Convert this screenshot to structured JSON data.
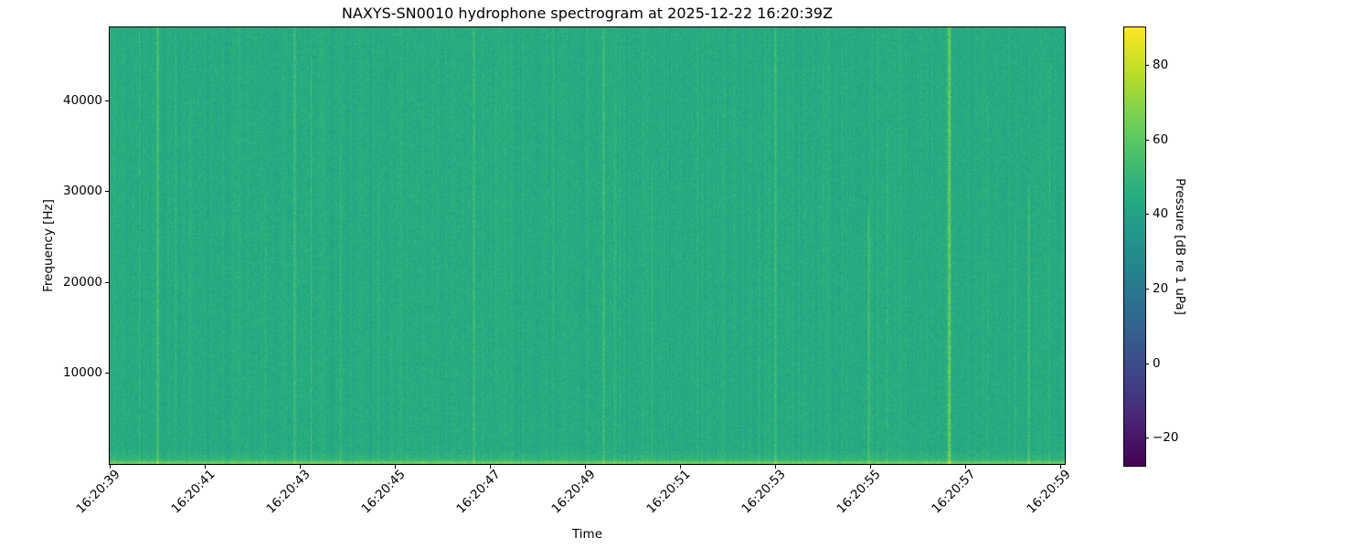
{
  "chart_data": {
    "type": "heatmap",
    "subtype": "spectrogram",
    "title": "NAXYS-SN0010 hydrophone spectrogram at 2025-12-22 16:20:39Z",
    "xlabel": "Time",
    "ylabel": "Frequency [Hz]",
    "colorbar_label": "Pressure [dB re 1 uPa]",
    "colormap": "viridis",
    "grid": false,
    "legend": "none (colorbar on right)",
    "x_range_seconds": [
      0,
      20.1
    ],
    "x_ticks": [
      {
        "label": "16:20:39",
        "t": 0
      },
      {
        "label": "16:20:41",
        "t": 2
      },
      {
        "label": "16:20:43",
        "t": 4
      },
      {
        "label": "16:20:45",
        "t": 6
      },
      {
        "label": "16:20:47",
        "t": 8
      },
      {
        "label": "16:20:49",
        "t": 10
      },
      {
        "label": "16:20:51",
        "t": 12
      },
      {
        "label": "16:20:53",
        "t": 14
      },
      {
        "label": "16:20:55",
        "t": 16
      },
      {
        "label": "16:20:57",
        "t": 18
      },
      {
        "label": "16:20:59",
        "t": 20
      }
    ],
    "ylim": [
      0,
      48000
    ],
    "y_ticks": [
      {
        "label": "10000",
        "f": 10000
      },
      {
        "label": "20000",
        "f": 20000
      },
      {
        "label": "30000",
        "f": 30000
      },
      {
        "label": "40000",
        "f": 40000
      }
    ],
    "clim": [
      -27.5,
      90
    ],
    "colorbar_ticks": [
      {
        "label": "80",
        "v": 80
      },
      {
        "label": "60",
        "v": 60
      },
      {
        "label": "40",
        "v": 40
      },
      {
        "label": "20",
        "v": 20
      },
      {
        "label": "0",
        "v": 0
      },
      {
        "label": "−20",
        "v": -20
      }
    ],
    "background_level_db": 44.5,
    "pixel_noise_sigma_db": 2.8,
    "column_noise_sigma_db": 1.2,
    "low_band": {
      "freq_hz": 800,
      "boost_db": 16
    },
    "transients": [
      {
        "t": 0.62,
        "db": 10,
        "band": [
          0,
          1
        ]
      },
      {
        "t": 1.0,
        "db": 15,
        "band": [
          0,
          1
        ]
      },
      {
        "t": 1.38,
        "db": 9,
        "band": [
          0.1,
          0.95
        ]
      },
      {
        "t": 1.67,
        "db": 6,
        "band": [
          0,
          0.8
        ]
      },
      {
        "t": 2.73,
        "db": 5,
        "band": [
          0.2,
          1
        ]
      },
      {
        "t": 3.27,
        "db": 6,
        "band": [
          0,
          0.6
        ]
      },
      {
        "t": 3.88,
        "db": 14,
        "band": [
          0,
          1
        ]
      },
      {
        "t": 4.23,
        "db": 9,
        "band": [
          0,
          0.9
        ]
      },
      {
        "t": 4.85,
        "db": 8,
        "band": [
          0,
          0.7
        ]
      },
      {
        "t": 5.63,
        "db": 8,
        "band": [
          0,
          0.6
        ]
      },
      {
        "t": 5.9,
        "db": 5,
        "band": [
          0,
          0.3
        ]
      },
      {
        "t": 7.65,
        "db": 15,
        "band": [
          0,
          1
        ]
      },
      {
        "t": 8.12,
        "db": 6,
        "band": [
          0.2,
          0.9
        ]
      },
      {
        "t": 9.33,
        "db": 6,
        "band": [
          0.3,
          1
        ]
      },
      {
        "t": 10.38,
        "db": 14,
        "band": [
          0,
          1
        ]
      },
      {
        "t": 10.62,
        "db": 8,
        "band": [
          0,
          0.8
        ]
      },
      {
        "t": 11.4,
        "db": 9,
        "band": [
          0,
          0.65
        ]
      },
      {
        "t": 12.37,
        "db": 9,
        "band": [
          0,
          0.95
        ]
      },
      {
        "t": 12.88,
        "db": 6,
        "band": [
          0,
          0.7
        ]
      },
      {
        "t": 13.13,
        "db": 5,
        "band": [
          0.3,
          1
        ]
      },
      {
        "t": 13.65,
        "db": 8,
        "band": [
          0,
          0.6
        ]
      },
      {
        "t": 14.0,
        "db": 13,
        "band": [
          0,
          1
        ]
      },
      {
        "t": 14.5,
        "db": 6,
        "band": [
          0,
          0.8
        ]
      },
      {
        "t": 15.0,
        "db": 6,
        "band": [
          0.4,
          1
        ]
      },
      {
        "t": 15.96,
        "db": 14,
        "band": [
          0,
          0.55
        ]
      },
      {
        "t": 16.35,
        "db": 8,
        "band": [
          0,
          0.75
        ]
      },
      {
        "t": 17.65,
        "db": 24,
        "band": [
          0,
          1
        ]
      },
      {
        "t": 18.46,
        "db": 6,
        "band": [
          0,
          0.8
        ]
      },
      {
        "t": 19.04,
        "db": 9,
        "band": [
          0,
          0.55
        ]
      },
      {
        "t": 19.33,
        "db": 13,
        "band": [
          0,
          0.6
        ]
      },
      {
        "t": 19.77,
        "db": 9,
        "band": [
          0,
          0.9
        ]
      },
      {
        "t": 20.04,
        "db": 9,
        "band": [
          0,
          0.6
        ]
      }
    ]
  },
  "colors": {
    "figure_background": "#ffffff",
    "axis_and_text": "#000000",
    "spectrogram_background_teal": "#2aa287",
    "transient_streak_green": "#7ad151",
    "low_band_green": "#5ec962",
    "colorbar_top_yellow": "#fde725",
    "colorbar_bottom_purple": "#440154"
  }
}
